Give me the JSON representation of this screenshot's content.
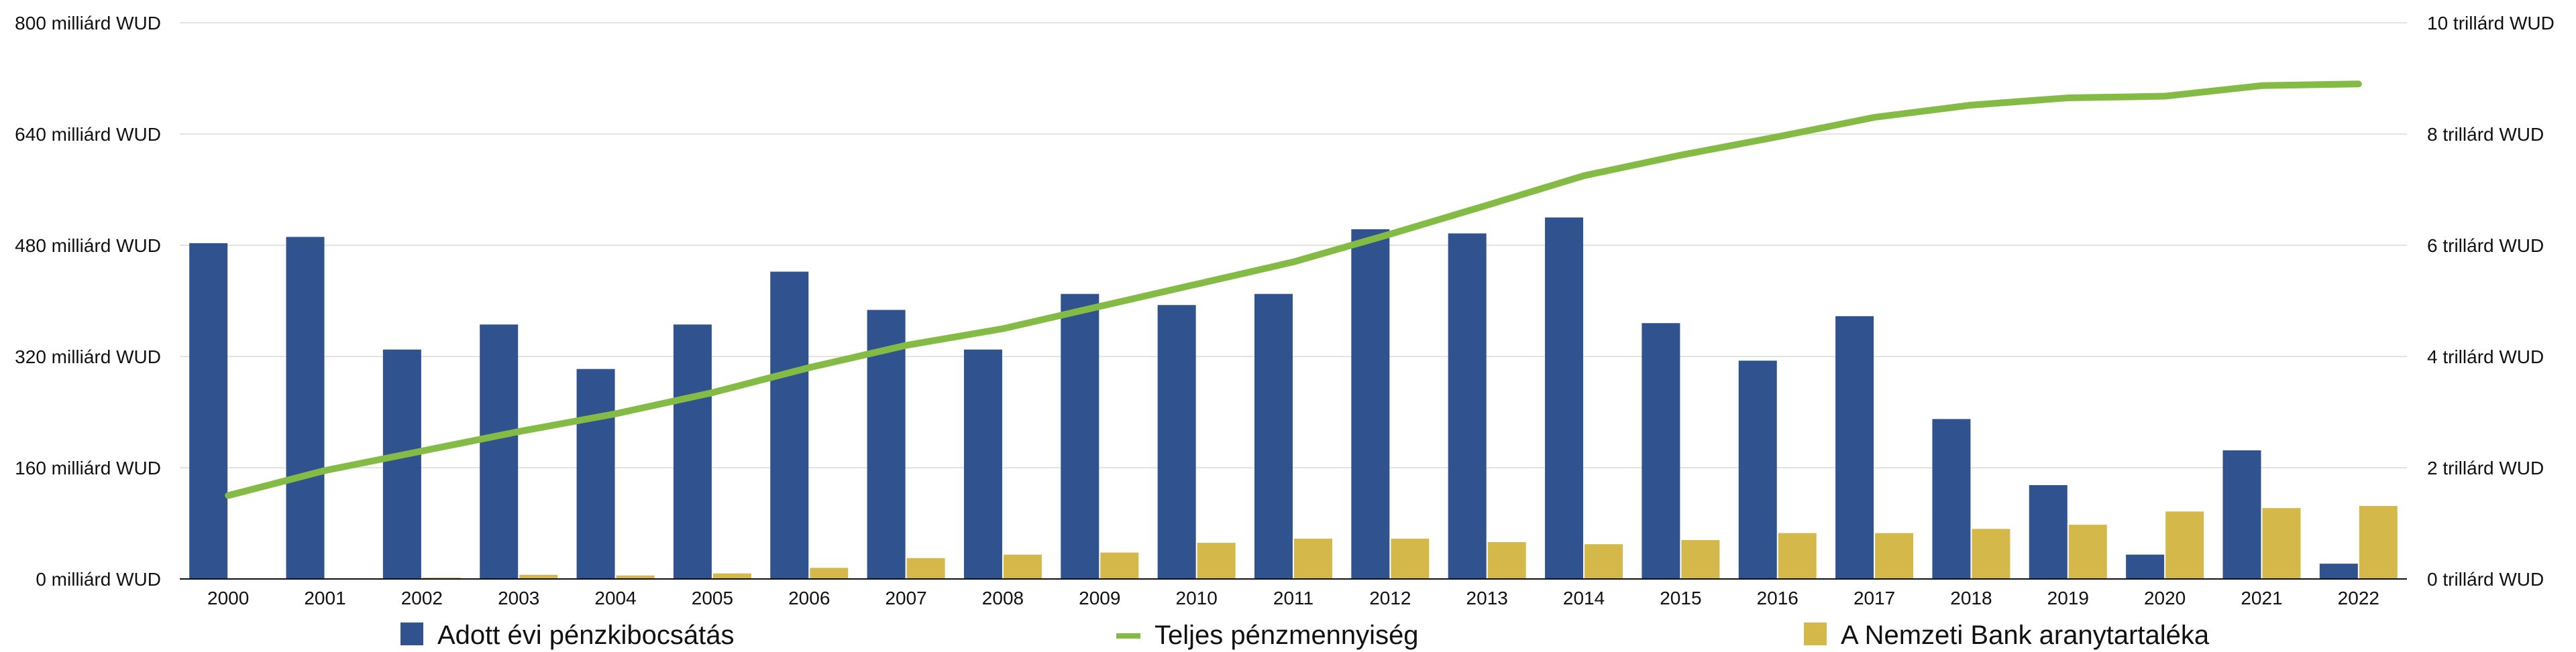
{
  "chart_data": {
    "type": "bar",
    "categories": [
      "2000",
      "2001",
      "2002",
      "2003",
      "2004",
      "2005",
      "2006",
      "2007",
      "2008",
      "2009",
      "2010",
      "2011",
      "2012",
      "2013",
      "2014",
      "2015",
      "2016",
      "2017",
      "2018",
      "2019",
      "2020",
      "2021",
      "2022"
    ],
    "y_left": {
      "ylim": [
        0,
        800
      ],
      "ticks": [
        0,
        160,
        320,
        480,
        640,
        800
      ],
      "tick_labels": [
        "0 milliárd WUD",
        "160 milliárd WUD",
        "320 milliárd WUD",
        "480 milliárd WUD",
        "640 milliárd WUD",
        "800 milliárd WUD"
      ]
    },
    "y_right": {
      "ylim": [
        0,
        10
      ],
      "ticks": [
        0,
        2,
        4,
        6,
        8,
        10
      ],
      "tick_labels": [
        "0 trillárd WUD",
        "2 trillárd WUD",
        "4 trillárd WUD",
        "6 trillárd WUD",
        "8 trillárd WUD",
        "10 trillárd WUD"
      ]
    },
    "grid": true,
    "legend_position": "bottom",
    "series": [
      {
        "name": "Adott évi pénzkibocsátás",
        "type": "bar",
        "axis": "left",
        "color": "#30528f",
        "values": [
          483,
          492,
          330,
          366,
          302,
          366,
          442,
          387,
          330,
          410,
          394,
          410,
          503,
          497,
          520,
          368,
          314,
          378,
          230,
          135,
          35,
          185,
          22
        ]
      },
      {
        "name": "Teljes pénzmennyiség",
        "type": "line",
        "axis": "right",
        "color": "#84bb45",
        "values": [
          1.5,
          1.95,
          2.3,
          2.65,
          2.97,
          3.35,
          3.8,
          4.2,
          4.5,
          4.9,
          5.3,
          5.7,
          6.2,
          6.72,
          7.25,
          7.62,
          7.95,
          8.3,
          8.52,
          8.65,
          8.68,
          8.87,
          8.9
        ]
      },
      {
        "name": "A Nemzeti Bank aranytartaléka",
        "type": "bar",
        "axis": "left",
        "color": "#d4b94a",
        "values": [
          0,
          0,
          2,
          6,
          5,
          8,
          16,
          30,
          35,
          38,
          52,
          58,
          58,
          53,
          50,
          56,
          66,
          66,
          72,
          78,
          97,
          102,
          105
        ]
      }
    ]
  }
}
